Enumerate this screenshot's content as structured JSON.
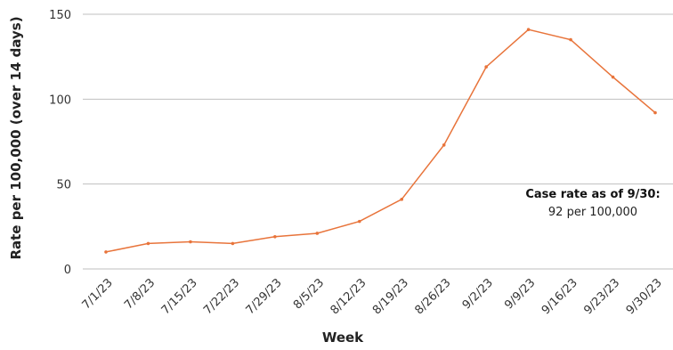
{
  "chart_data": {
    "type": "line",
    "title": "",
    "xlabel": "Week",
    "ylabel": "Rate per 100,000 (over 14 days)",
    "categories": [
      "7/1/23",
      "7/8/23",
      "7/15/23",
      "7/22/23",
      "7/29/23",
      "8/5/23",
      "8/12/23",
      "8/19/23",
      "8/26/23",
      "9/2/23",
      "9/9/23",
      "9/16/23",
      "9/23/23",
      "9/30/23"
    ],
    "values": [
      10,
      15,
      16,
      15,
      19,
      21,
      28,
      41,
      73,
      119,
      141,
      135,
      113,
      92
    ],
    "yticks": [
      0,
      50,
      100,
      150
    ],
    "ylim": [
      0,
      150
    ],
    "grid": true,
    "line_color": "#e8743b",
    "gridline_color": "#bfbfbf",
    "annotation": {
      "title": "Case rate as of 9/30:",
      "text": "92 per 100,000"
    }
  }
}
